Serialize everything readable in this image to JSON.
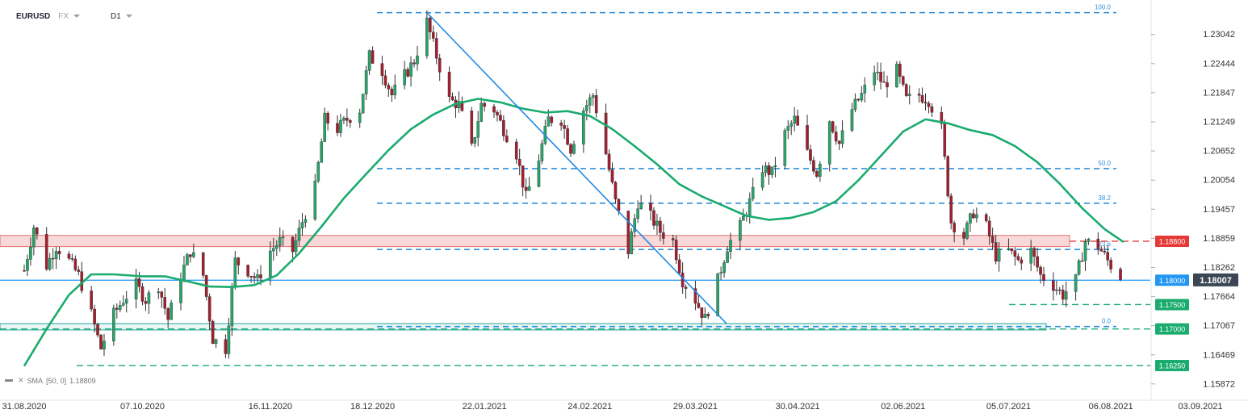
{
  "header": {
    "symbol": "EURUSD",
    "market": "FX",
    "timeframe": "D1"
  },
  "indicator_legend": {
    "label": "SMA",
    "params": "[50, 0]",
    "value": "1.18809"
  },
  "colors": {
    "up": "#27a56a",
    "down": "#a31f2e",
    "sma": "#1aab6e",
    "fib": "#2f8fdb",
    "resistance_zone": "#e57373",
    "support_zone": "#26a69a"
  },
  "chart_data": {
    "type": "candlestick",
    "title": "",
    "x_ticks": [
      "31.08.2020",
      "07.10.2020",
      "16.11.2020",
      "18.12.2020",
      "22.01.2021",
      "24.02.2021",
      "29.03.2021",
      "30.04.2021",
      "02.06.2021",
      "05.07.2021",
      "06.08.2021",
      "03.09.2021"
    ],
    "y_ticks": [
      "1.23042",
      "1.22444",
      "1.21847",
      "1.21249",
      "1.20652",
      "1.20054",
      "1.19457",
      "1.18859",
      "1.18262",
      "1.17664",
      "1.17067",
      "1.16469",
      "1.15872"
    ],
    "ylim": [
      1.1572,
      1.2355
    ],
    "last_price": "1.18007",
    "horizontal_levels": [
      {
        "label": "1.18800",
        "value": 1.188,
        "style": "dashed",
        "color": "#e53935"
      },
      {
        "label": "1.18000",
        "value": 1.18,
        "style": "solid",
        "color": "#2196f3"
      },
      {
        "label": "1.17500",
        "value": 1.175,
        "style": "dashed",
        "color": "#1aab6e"
      },
      {
        "label": "1.17000",
        "value": 1.17,
        "style": "dashed",
        "color": "#1aab6e"
      },
      {
        "label": "1.16250",
        "value": 1.1625,
        "style": "dashed",
        "color": "#1aab6e"
      }
    ],
    "fibonacci": [
      {
        "label": "100.0",
        "value": 1.2349
      },
      {
        "label": "50.0",
        "value": 1.2029
      },
      {
        "label": "38.2",
        "value": 1.1958
      },
      {
        "label": "23.6",
        "value": 1.1863
      },
      {
        "label": "0.0",
        "value": 1.1705
      }
    ],
    "zones": [
      {
        "name": "resistance",
        "from": 1.1869,
        "to": 1.1892
      },
      {
        "name": "support",
        "from": 1.1698,
        "to": 1.1711
      }
    ],
    "trendline": {
      "from": {
        "date": "04.01.2021",
        "value": 1.2349
      },
      "to": {
        "date": "08.04.2021",
        "value": 1.1711
      }
    },
    "sma_points": [
      [
        "31.08.2020",
        1.1624
      ],
      [
        "07.09.2020",
        1.17
      ],
      [
        "14.09.2020",
        1.177
      ],
      [
        "21.09.2020",
        1.1812
      ],
      [
        "28.09.2020",
        1.1812
      ],
      [
        "07.10.2020",
        1.1808
      ],
      [
        "14.10.2020",
        1.1808
      ],
      [
        "21.10.2020",
        1.1798
      ],
      [
        "28.10.2020",
        1.1787
      ],
      [
        "04.11.2020",
        1.1786
      ],
      [
        "11.11.2020",
        1.179
      ],
      [
        "18.11.2020",
        1.181
      ],
      [
        "25.11.2020",
        1.1855
      ],
      [
        "02.12.2020",
        1.191
      ],
      [
        "09.12.2020",
        1.1968
      ],
      [
        "16.12.2020",
        1.2018
      ],
      [
        "23.12.2020",
        1.2067
      ],
      [
        "30.12.2020",
        1.211
      ],
      [
        "06.01.2021",
        1.214
      ],
      [
        "13.01.2021",
        1.2162
      ],
      [
        "20.01.2021",
        1.2172
      ],
      [
        "27.01.2021",
        1.2165
      ],
      [
        "03.02.2021",
        1.2152
      ],
      [
        "10.02.2021",
        1.2144
      ],
      [
        "17.02.2021",
        1.2147
      ],
      [
        "24.02.2021",
        1.2137
      ],
      [
        "03.03.2021",
        1.211
      ],
      [
        "10.03.2021",
        1.2075
      ],
      [
        "17.03.2021",
        1.2038
      ],
      [
        "24.03.2021",
        1.1997
      ],
      [
        "31.03.2021",
        1.1972
      ],
      [
        "07.04.2021",
        1.1952
      ],
      [
        "14.04.2021",
        1.1932
      ],
      [
        "21.04.2021",
        1.1924
      ],
      [
        "28.04.2021",
        1.1928
      ],
      [
        "05.05.2021",
        1.194
      ],
      [
        "12.05.2021",
        1.1962
      ],
      [
        "19.05.2021",
        1.2005
      ],
      [
        "26.05.2021",
        1.2055
      ],
      [
        "02.06.2021",
        1.2105
      ],
      [
        "09.06.2021",
        1.213
      ],
      [
        "16.06.2021",
        1.2122
      ],
      [
        "23.06.2021",
        1.2108
      ],
      [
        "30.06.2021",
        1.2098
      ],
      [
        "07.07.2021",
        1.2075
      ],
      [
        "14.07.2021",
        1.2042
      ],
      [
        "21.07.2021",
        1.1998
      ],
      [
        "28.07.2021",
        1.1948
      ],
      [
        "04.08.2021",
        1.1905
      ],
      [
        "10.08.2021",
        1.1878
      ]
    ],
    "price_path": [
      [
        "31.08.2020",
        1.182
      ],
      [
        "03.09.2020",
        1.191
      ],
      [
        "07.09.2020",
        1.183
      ],
      [
        "10.09.2020",
        1.187
      ],
      [
        "14.09.2020",
        1.184
      ],
      [
        "17.09.2020",
        1.181
      ],
      [
        "21.09.2020",
        1.173
      ],
      [
        "24.09.2020",
        1.166
      ],
      [
        "28.09.2020",
        1.173
      ],
      [
        "01.10.2020",
        1.176
      ],
      [
        "05.10.2020",
        1.179
      ],
      [
        "08.10.2020",
        1.176
      ],
      [
        "12.10.2020",
        1.179
      ],
      [
        "15.10.2020",
        1.172
      ],
      [
        "19.10.2020",
        1.181
      ],
      [
        "22.10.2020",
        1.186
      ],
      [
        "26.10.2020",
        1.181
      ],
      [
        "29.10.2020",
        1.168
      ],
      [
        "02.11.2020",
        1.166
      ],
      [
        "05.11.2020",
        1.184
      ],
      [
        "09.11.2020",
        1.182
      ],
      [
        "12.11.2020",
        1.18
      ],
      [
        "16.11.2020",
        1.186
      ],
      [
        "19.11.2020",
        1.188
      ],
      [
        "23.11.2020",
        1.186
      ],
      [
        "26.11.2020",
        1.192
      ],
      [
        "30.11.2020",
        1.199
      ],
      [
        "03.12.2020",
        1.213
      ],
      [
        "07.12.2020",
        1.211
      ],
      [
        "10.12.2020",
        1.213
      ],
      [
        "14.12.2020",
        1.215
      ],
      [
        "17.12.2020",
        1.226
      ],
      [
        "21.12.2020",
        1.223
      ],
      [
        "24.12.2020",
        1.218
      ],
      [
        "28.12.2020",
        1.222
      ],
      [
        "31.12.2020",
        1.225
      ],
      [
        "04.01.2021",
        1.233
      ],
      [
        "07.01.2021",
        1.226
      ],
      [
        "11.01.2021",
        1.217
      ],
      [
        "14.01.2021",
        1.216
      ],
      [
        "18.01.2021",
        1.207
      ],
      [
        "21.01.2021",
        1.216
      ],
      [
        "25.01.2021",
        1.215
      ],
      [
        "28.01.2021",
        1.211
      ],
      [
        "01.02.2021",
        1.206
      ],
      [
        "04.02.2021",
        1.197
      ],
      [
        "08.02.2021",
        1.205
      ],
      [
        "11.02.2021",
        1.213
      ],
      [
        "15.02.2021",
        1.213
      ],
      [
        "18.02.2021",
        1.207
      ],
      [
        "22.02.2021",
        1.215
      ],
      [
        "25.02.2021",
        1.218
      ],
      [
        "01.03.2021",
        1.206
      ],
      [
        "04.03.2021",
        1.196
      ],
      [
        "08.03.2021",
        1.186
      ],
      [
        "11.03.2021",
        1.196
      ],
      [
        "15.03.2021",
        1.193
      ],
      [
        "18.03.2021",
        1.19
      ],
      [
        "22.03.2021",
        1.188
      ],
      [
        "25.03.2021",
        1.18
      ],
      [
        "29.03.2021",
        1.176
      ],
      [
        "01.04.2021",
        1.172
      ],
      [
        "05.04.2021",
        1.18
      ],
      [
        "08.04.2021",
        1.187
      ],
      [
        "12.04.2021",
        1.191
      ],
      [
        "15.04.2021",
        1.196
      ],
      [
        "19.04.2021",
        1.203
      ],
      [
        "22.04.2021",
        1.202
      ],
      [
        "26.04.2021",
        1.21
      ],
      [
        "29.04.2021",
        1.213
      ],
      [
        "03.05.2021",
        1.206
      ],
      [
        "06.05.2021",
        1.202
      ],
      [
        "10.05.2021",
        1.213
      ],
      [
        "13.05.2021",
        1.208
      ],
      [
        "17.05.2021",
        1.215
      ],
      [
        "20.05.2021",
        1.218
      ],
      [
        "24.05.2021",
        1.223
      ],
      [
        "27.05.2021",
        1.22
      ],
      [
        "31.05.2021",
        1.223
      ],
      [
        "03.06.2021",
        1.217
      ],
      [
        "07.06.2021",
        1.218
      ],
      [
        "10.06.2021",
        1.217
      ],
      [
        "14.06.2021",
        1.211
      ],
      [
        "17.06.2021",
        1.192
      ],
      [
        "21.06.2021",
        1.189
      ],
      [
        "24.06.2021",
        1.194
      ],
      [
        "28.06.2021",
        1.191
      ],
      [
        "01.07.2021",
        1.185
      ],
      [
        "05.07.2021",
        1.186
      ],
      [
        "08.07.2021",
        1.184
      ],
      [
        "12.07.2021",
        1.186
      ],
      [
        "15.07.2021",
        1.181
      ],
      [
        "19.07.2021",
        1.179
      ],
      [
        "22.07.2021",
        1.177
      ],
      [
        "26.07.2021",
        1.18
      ],
      [
        "29.07.2021",
        1.188
      ],
      [
        "02.08.2021",
        1.187
      ],
      [
        "05.08.2021",
        1.184
      ],
      [
        "09.08.2021",
        1.1801
      ]
    ]
  }
}
